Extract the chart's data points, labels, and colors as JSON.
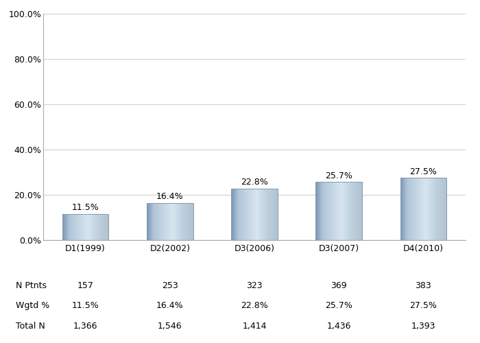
{
  "categories": [
    "D1(1999)",
    "D2(2002)",
    "D3(2006)",
    "D3(2007)",
    "D4(2010)"
  ],
  "values": [
    11.5,
    16.4,
    22.8,
    25.7,
    27.5
  ],
  "n_ptnts": [
    "157",
    "253",
    "323",
    "369",
    "383"
  ],
  "wgtd_pct": [
    "11.5%",
    "16.4%",
    "22.8%",
    "25.7%",
    "27.5%"
  ],
  "total_n": [
    "1,366",
    "1,546",
    "1,414",
    "1,436",
    "1,393"
  ],
  "ylim": [
    0,
    100
  ],
  "yticks": [
    0,
    20,
    40,
    60,
    80,
    100
  ],
  "ytick_labels": [
    "0.0%",
    "20.0%",
    "40.0%",
    "60.0%",
    "80.0%",
    "100.0%"
  ],
  "bar_base_color": "#b8c8d8",
  "bar_edge_color": "#8899aa",
  "label_row1": "N Ptnts",
  "label_row2": "Wgtd %",
  "label_row3": "Total N",
  "background_color": "#ffffff",
  "grid_color": "#d0d0d0",
  "font_size_ticks": 9,
  "font_size_labels": 9,
  "font_size_bar_labels": 9
}
